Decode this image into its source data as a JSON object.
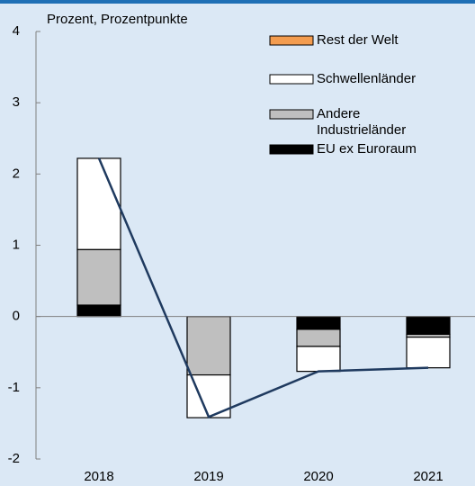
{
  "chart_data": {
    "type": "stacked_bar_line",
    "ylabel": "Prozent, Prozentpunkte",
    "categories": [
      "2018",
      "2019",
      "2020",
      "2021"
    ],
    "series": [
      {
        "name": "Rest der Welt",
        "color": "#f39c4f",
        "values": [
          0,
          0,
          0,
          0
        ]
      },
      {
        "name": "Schwellenländer",
        "color": "#ffffff",
        "values": [
          1.28,
          -0.6,
          -0.35,
          -0.43
        ]
      },
      {
        "name": "Andere Industrieländer",
        "color": "#bfbfbf",
        "values": [
          0.78,
          -0.82,
          -0.24,
          -0.04
        ]
      },
      {
        "name": "EU ex Euroraum",
        "color": "#000000",
        "values": [
          0.16,
          0,
          -0.18,
          -0.25
        ]
      }
    ],
    "line": {
      "color": "#1f3a5f",
      "values": [
        2.22,
        -1.41,
        -0.77,
        -0.72
      ]
    },
    "ylim": [
      -2,
      4
    ],
    "yticks": [
      -2,
      -1,
      0,
      1,
      2,
      3,
      4
    ]
  }
}
